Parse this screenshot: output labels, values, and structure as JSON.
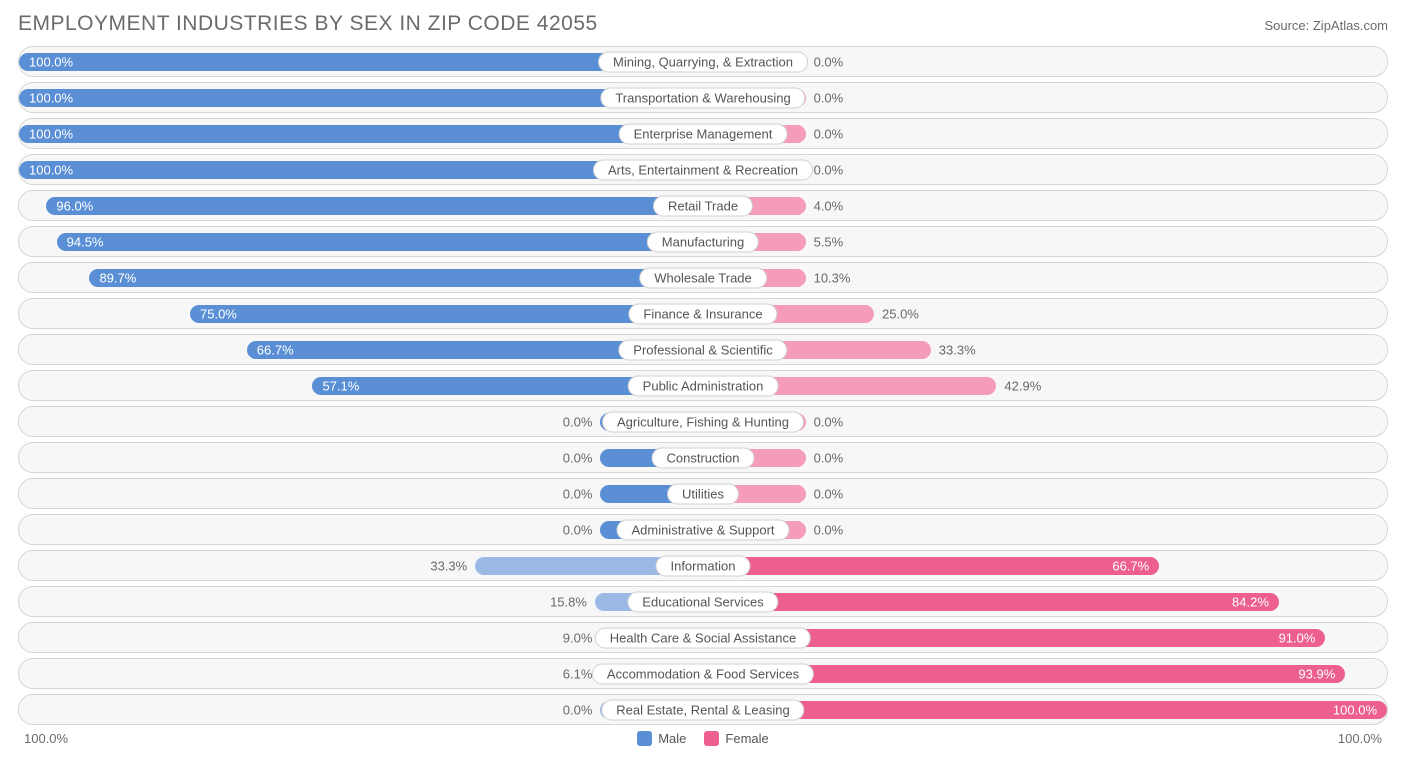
{
  "title": "EMPLOYMENT INDUSTRIES BY SEX IN ZIP CODE 42055",
  "source": "Source: ZipAtlas.com",
  "colors": {
    "male_strong": "#5a8fd6",
    "male_weak": "#9ab9e4",
    "female_strong": "#ec5f8f",
    "female_weak": "#f59cb9",
    "row_bg": "#f7f7f7",
    "row_border": "#d6d6d6",
    "text": "#6b6b6b",
    "bar_text": "#ffffff",
    "label_bg": "#ffffff",
    "label_border": "#d0d0d0"
  },
  "axis": {
    "left": "100.0%",
    "right": "100.0%"
  },
  "legend": {
    "male": "Male",
    "female": "Female"
  },
  "min_bar_pct": 15,
  "rows": [
    {
      "label": "Mining, Quarrying, & Extraction",
      "male": 100.0,
      "female": 0.0
    },
    {
      "label": "Transportation & Warehousing",
      "male": 100.0,
      "female": 0.0
    },
    {
      "label": "Enterprise Management",
      "male": 100.0,
      "female": 0.0
    },
    {
      "label": "Arts, Entertainment & Recreation",
      "male": 100.0,
      "female": 0.0
    },
    {
      "label": "Retail Trade",
      "male": 96.0,
      "female": 4.0
    },
    {
      "label": "Manufacturing",
      "male": 94.5,
      "female": 5.5
    },
    {
      "label": "Wholesale Trade",
      "male": 89.7,
      "female": 10.3
    },
    {
      "label": "Finance & Insurance",
      "male": 75.0,
      "female": 25.0
    },
    {
      "label": "Professional & Scientific",
      "male": 66.7,
      "female": 33.3
    },
    {
      "label": "Public Administration",
      "male": 57.1,
      "female": 42.9
    },
    {
      "label": "Agriculture, Fishing & Hunting",
      "male": 0.0,
      "female": 0.0
    },
    {
      "label": "Construction",
      "male": 0.0,
      "female": 0.0
    },
    {
      "label": "Utilities",
      "male": 0.0,
      "female": 0.0
    },
    {
      "label": "Administrative & Support",
      "male": 0.0,
      "female": 0.0
    },
    {
      "label": "Information",
      "male": 33.3,
      "female": 66.7
    },
    {
      "label": "Educational Services",
      "male": 15.8,
      "female": 84.2
    },
    {
      "label": "Health Care & Social Assistance",
      "male": 9.0,
      "female": 91.0
    },
    {
      "label": "Accommodation & Food Services",
      "male": 6.1,
      "female": 93.9
    },
    {
      "label": "Real Estate, Rental & Leasing",
      "male": 0.0,
      "female": 100.0
    }
  ]
}
